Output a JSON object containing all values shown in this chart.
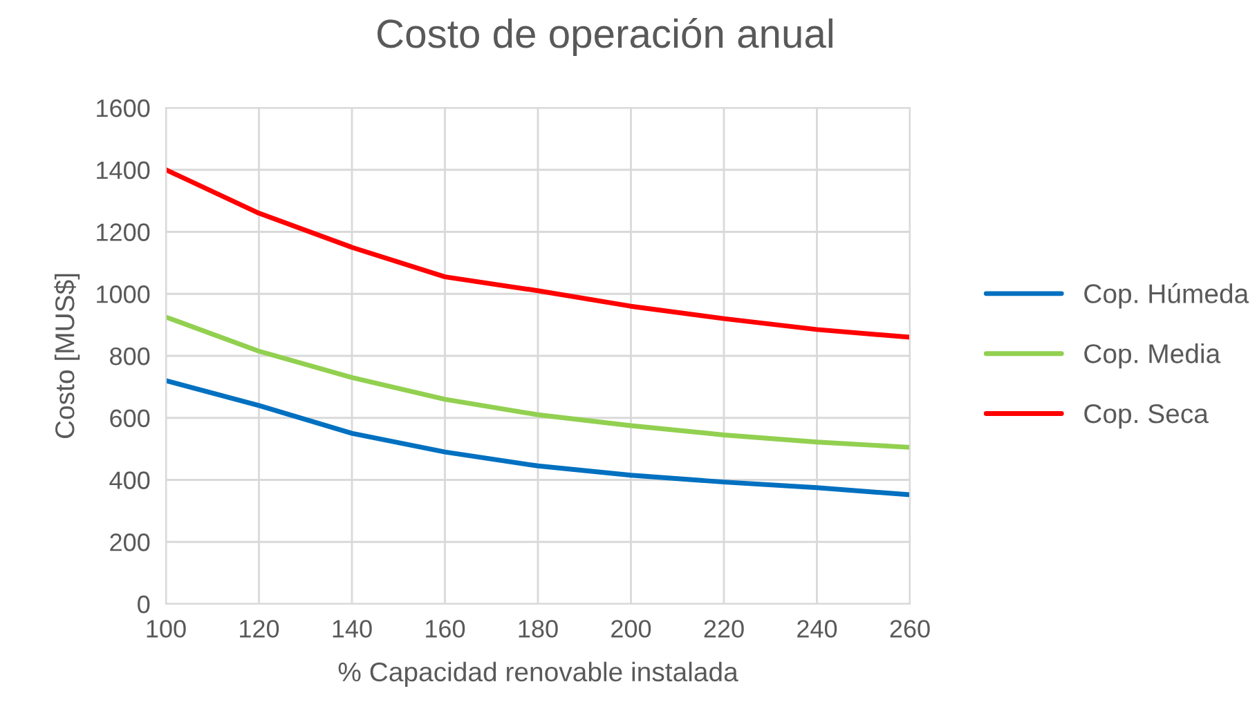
{
  "chart_data": {
    "type": "line",
    "title": "Costo de operación anual",
    "xlabel": "% Capacidad renovable instalada",
    "ylabel": "Costo [MUS$]",
    "x": [
      100,
      120,
      140,
      160,
      180,
      200,
      220,
      240,
      260
    ],
    "series": [
      {
        "name": "Cop. Húmeda",
        "color": "#0070c0",
        "values": [
          720,
          640,
          550,
          490,
          445,
          415,
          393,
          375,
          352
        ]
      },
      {
        "name": "Cop. Media",
        "color": "#92d050",
        "values": [
          925,
          815,
          730,
          660,
          610,
          575,
          545,
          522,
          505
        ]
      },
      {
        "name": "Cop. Seca",
        "color": "#ff0000",
        "values": [
          1400,
          1260,
          1150,
          1055,
          1010,
          960,
          920,
          885,
          860
        ]
      }
    ],
    "xlim": [
      100,
      260
    ],
    "xticks": [
      100,
      120,
      140,
      160,
      180,
      200,
      220,
      240,
      260
    ],
    "ylim": [
      0,
      1600
    ],
    "yticks": [
      0,
      200,
      400,
      600,
      800,
      1000,
      1200,
      1400,
      1600
    ],
    "grid": true,
    "legend": "right",
    "marker": "none",
    "line_style": "solid"
  }
}
